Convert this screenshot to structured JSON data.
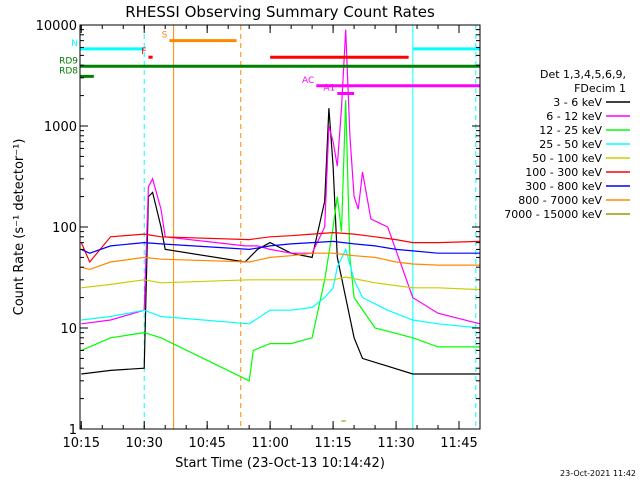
{
  "chart_data": {
    "type": "line",
    "title": "RHESSI Observing Summary Count Rates",
    "xlabel": "Start Time (23-Oct-13 10:14:42)",
    "ylabel": "Count Rate (s⁻¹ detector⁻¹)",
    "y_scale": "log",
    "ylim": [
      1,
      10000
    ],
    "xlim": [
      "10:14:42",
      "11:50:00"
    ],
    "x_ticks": [
      "10:15",
      "10:30",
      "10:45",
      "11:00",
      "11:15",
      "11:30",
      "11:45"
    ],
    "y_ticks": [
      "1",
      "10",
      "100",
      "1000",
      "10000"
    ],
    "grid": false,
    "legend_position": "right",
    "legend_header": [
      "Det 1,3,4,5,6,9,",
      "FDecim 1"
    ],
    "footer_date": "23-Oct-2021 11:42",
    "series": [
      {
        "name": "3 - 6 keV",
        "color": "#000000",
        "points": [
          [
            "10:15",
            3.5
          ],
          [
            "10:22",
            3.8
          ],
          [
            "10:30",
            4
          ],
          [
            "10:31",
            200
          ],
          [
            "10:32",
            220
          ],
          [
            "10:34",
            100
          ],
          [
            "10:35",
            60
          ],
          [
            "10:54",
            45
          ],
          [
            "10:57",
            60
          ],
          [
            "11:00",
            70
          ],
          [
            "11:05",
            55
          ],
          [
            "11:10",
            50
          ],
          [
            "11:13",
            180
          ],
          [
            "11:14",
            1500
          ],
          [
            "11:15",
            400
          ],
          [
            "11:16",
            50
          ],
          [
            "11:18",
            20
          ],
          [
            "11:20",
            8
          ],
          [
            "11:22",
            5
          ],
          [
            "11:34",
            3.5
          ],
          [
            "11:50",
            3.5
          ]
        ]
      },
      {
        "name": "6 - 12 keV",
        "color": "#ff00ff",
        "points": [
          [
            "10:15",
            11
          ],
          [
            "10:22",
            12
          ],
          [
            "10:30",
            15
          ],
          [
            "10:31",
            250
          ],
          [
            "10:32",
            300
          ],
          [
            "10:34",
            150
          ],
          [
            "10:35",
            80
          ],
          [
            "10:54",
            65
          ],
          [
            "10:57",
            65
          ],
          [
            "11:00",
            60
          ],
          [
            "11:05",
            55
          ],
          [
            "11:10",
            55
          ],
          [
            "11:13",
            100
          ],
          [
            "11:14",
            1000
          ],
          [
            "11:15",
            700
          ],
          [
            "11:16",
            400
          ],
          [
            "11:17",
            1500
          ],
          [
            "11:18",
            9000
          ],
          [
            "11:19",
            800
          ],
          [
            "11:20",
            200
          ],
          [
            "11:21",
            150
          ],
          [
            "11:22",
            350
          ],
          [
            "11:24",
            120
          ],
          [
            "11:28",
            100
          ],
          [
            "11:34",
            20
          ],
          [
            "11:40",
            14
          ],
          [
            "11:50",
            11
          ]
        ]
      },
      {
        "name": "12 - 25 keV",
        "color": "#00ff00",
        "points": [
          [
            "10:15",
            6
          ],
          [
            "10:22",
            8
          ],
          [
            "10:30",
            9
          ],
          [
            "10:34",
            8
          ],
          [
            "10:55",
            3
          ],
          [
            "10:56",
            6
          ],
          [
            "11:00",
            7
          ],
          [
            "11:05",
            7
          ],
          [
            "11:10",
            8
          ],
          [
            "11:13",
            30
          ],
          [
            "11:15",
            100
          ],
          [
            "11:16",
            200
          ],
          [
            "11:17",
            90
          ],
          [
            "11:18",
            1800
          ],
          [
            "11:19",
            50
          ],
          [
            "11:20",
            20
          ],
          [
            "11:25",
            10
          ],
          [
            "11:34",
            8
          ],
          [
            "11:40",
            6.5
          ],
          [
            "11:50",
            6.5
          ]
        ]
      },
      {
        "name": "25 - 50 keV",
        "color": "#00ffff",
        "points": [
          [
            "10:15",
            12
          ],
          [
            "10:22",
            13
          ],
          [
            "10:30",
            15
          ],
          [
            "10:34",
            13
          ],
          [
            "10:55",
            11
          ],
          [
            "11:00",
            15
          ],
          [
            "11:05",
            15
          ],
          [
            "11:10",
            16
          ],
          [
            "11:13",
            20
          ],
          [
            "11:15",
            25
          ],
          [
            "11:16",
            40
          ],
          [
            "11:18",
            60
          ],
          [
            "11:20",
            30
          ],
          [
            "11:22",
            20
          ],
          [
            "11:28",
            15
          ],
          [
            "11:34",
            12
          ],
          [
            "11:40",
            11
          ],
          [
            "11:50",
            10
          ]
        ]
      },
      {
        "name": "50 - 100 keV",
        "color": "#cccc00",
        "points": [
          [
            "10:15",
            25
          ],
          [
            "10:22",
            27
          ],
          [
            "10:30",
            30
          ],
          [
            "10:34",
            28
          ],
          [
            "10:55",
            30
          ],
          [
            "11:00",
            30
          ],
          [
            "11:05",
            30
          ],
          [
            "11:10",
            30
          ],
          [
            "11:15",
            30
          ],
          [
            "11:18",
            32
          ],
          [
            "11:25",
            28
          ],
          [
            "11:34",
            25
          ],
          [
            "11:40",
            25
          ],
          [
            "11:50",
            24
          ]
        ]
      },
      {
        "name": "100 - 300 keV",
        "color": "#ff0000",
        "points": [
          [
            "10:15",
            70
          ],
          [
            "10:17",
            45
          ],
          [
            "10:22",
            80
          ],
          [
            "10:30",
            85
          ],
          [
            "10:34",
            80
          ],
          [
            "10:55",
            75
          ],
          [
            "11:00",
            80
          ],
          [
            "11:05",
            82
          ],
          [
            "11:10",
            85
          ],
          [
            "11:15",
            88
          ],
          [
            "11:20",
            85
          ],
          [
            "11:25",
            80
          ],
          [
            "11:30",
            75
          ],
          [
            "11:34",
            70
          ],
          [
            "11:40",
            70
          ],
          [
            "11:50",
            72
          ]
        ]
      },
      {
        "name": "300 - 800 keV",
        "color": "#0000ff",
        "points": [
          [
            "10:15",
            60
          ],
          [
            "10:17",
            55
          ],
          [
            "10:22",
            65
          ],
          [
            "10:30",
            70
          ],
          [
            "10:34",
            68
          ],
          [
            "10:55",
            60
          ],
          [
            "11:00",
            65
          ],
          [
            "11:05",
            68
          ],
          [
            "11:10",
            70
          ],
          [
            "11:15",
            72
          ],
          [
            "11:20",
            68
          ],
          [
            "11:25",
            65
          ],
          [
            "11:30",
            60
          ],
          [
            "11:34",
            58
          ],
          [
            "11:40",
            55
          ],
          [
            "11:50",
            55
          ]
        ]
      },
      {
        "name": "800 - 7000 keV",
        "color": "#ff8800",
        "points": [
          [
            "10:15",
            40
          ],
          [
            "10:17",
            38
          ],
          [
            "10:22",
            45
          ],
          [
            "10:30",
            50
          ],
          [
            "10:34",
            48
          ],
          [
            "10:55",
            45
          ],
          [
            "11:00",
            50
          ],
          [
            "11:05",
            52
          ],
          [
            "11:10",
            55
          ],
          [
            "11:15",
            55
          ],
          [
            "11:20",
            52
          ],
          [
            "11:25",
            50
          ],
          [
            "11:30",
            45
          ],
          [
            "11:34",
            43
          ],
          [
            "11:40",
            42
          ],
          [
            "11:50",
            42
          ]
        ]
      },
      {
        "name": "7000 - 15000 keV",
        "color": "#999900",
        "points": [
          [
            "11:17",
            1.2
          ],
          [
            "11:18",
            1.2
          ]
        ]
      }
    ],
    "annotations": [
      {
        "label": "N",
        "color": "#00ffff",
        "from": "10:14:42",
        "to": "10:30",
        "level": 5800
      },
      {
        "label": "",
        "color": "#00ffff",
        "from": "11:34",
        "to": "11:50",
        "level": 5800
      },
      {
        "label": "S",
        "color": "#ff8800",
        "from": "10:36",
        "to": "10:52",
        "level": 7000
      },
      {
        "label": "F",
        "color": "#ff0000",
        "from": "10:31",
        "to": "10:32",
        "level": 4800
      },
      {
        "label": "",
        "color": "#ff0000",
        "from": "11:00",
        "to": "11:33",
        "level": 4800
      },
      {
        "label": "RD9",
        "color": "#008000",
        "from": "10:14:42",
        "to": "11:50",
        "level": 3900
      },
      {
        "label": "RD8",
        "color": "#008000",
        "from": "10:14:42",
        "to": "10:18",
        "level": 3100
      },
      {
        "label": "AC",
        "color": "#ff00ff",
        "from": "11:11",
        "to": "11:50",
        "level": 2500
      },
      {
        "label": "A1",
        "color": "#ff00ff",
        "from": "11:16",
        "to": "11:20",
        "level": 2100
      }
    ],
    "vertical_markers": [
      {
        "time": "10:14:42",
        "color": "#00ffff",
        "style": "solid"
      },
      {
        "time": "10:30",
        "color": "#00ffff",
        "style": "dashed"
      },
      {
        "time": "10:37",
        "color": "#ff8800",
        "style": "solid"
      },
      {
        "time": "10:53",
        "color": "#ff8800",
        "style": "dashed"
      },
      {
        "time": "11:34",
        "color": "#00ffff",
        "style": "solid"
      },
      {
        "time": "11:49",
        "color": "#00ffff",
        "style": "dashed"
      }
    ]
  }
}
